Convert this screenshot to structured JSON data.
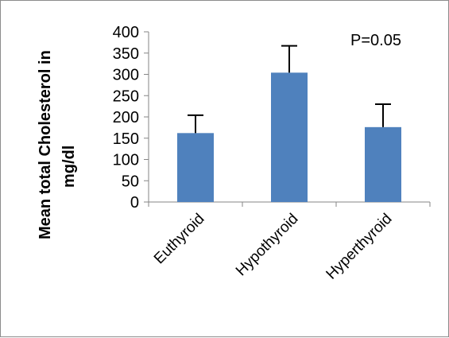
{
  "chart_data": {
    "type": "bar",
    "categories": [
      "Euthyroid",
      "Hypothyroid",
      "Hyperthyroid"
    ],
    "values": [
      162,
      304,
      176
    ],
    "error_bars": [
      42,
      63,
      54
    ],
    "ylabel": "Mean total Cholesterol in mg/dl",
    "ylabel_lines": [
      "Mean total Cholesterol in",
      "mg/dl"
    ],
    "xlabel": "",
    "title": "",
    "ylim": [
      0,
      400
    ],
    "yticks": [
      0,
      50,
      100,
      150,
      200,
      250,
      300,
      350,
      400
    ],
    "annotation": "P=0.05",
    "bar_color": "#4F81BD",
    "error_bar_color": "#000000",
    "grid": false,
    "legend": "none"
  }
}
